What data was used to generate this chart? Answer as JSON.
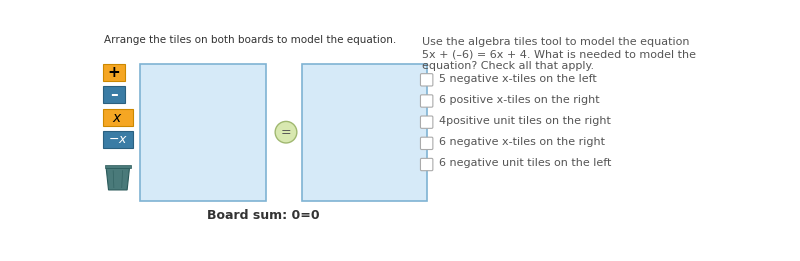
{
  "title_left": "Arrange the tiles on both boards to model the equation.",
  "board_sum": "Board sum: 0=0",
  "question_line1": "Use the algebra tiles tool to model the equation",
  "question_line2": "5x + (–6) = 6x + 4. What is needed to model the",
  "question_line3": "equation? Check all that apply.",
  "options": [
    "5 negative x-tiles on the left",
    "6 positive x-tiles on the right",
    "4positive unit tiles on the right",
    "6 negative x-tiles on the right",
    "6 negative unit tiles on the left"
  ],
  "tile_plus_color": "#F5A623",
  "tile_minus_color": "#3A7CA5",
  "tile_x_color": "#F5A623",
  "tile_neg_x_color": "#3A7CA5",
  "board_fill": "#D6EAF8",
  "board_edge": "#7FB3D3",
  "bg_color": "#FFFFFF",
  "eq_circle_color": "#D8E8B0",
  "eq_circle_edge": "#A0B870",
  "text_color": "#333333",
  "question_text_color": "#555555",
  "bin_color": "#4A7A7A",
  "bin_edge": "#2A5A5A"
}
